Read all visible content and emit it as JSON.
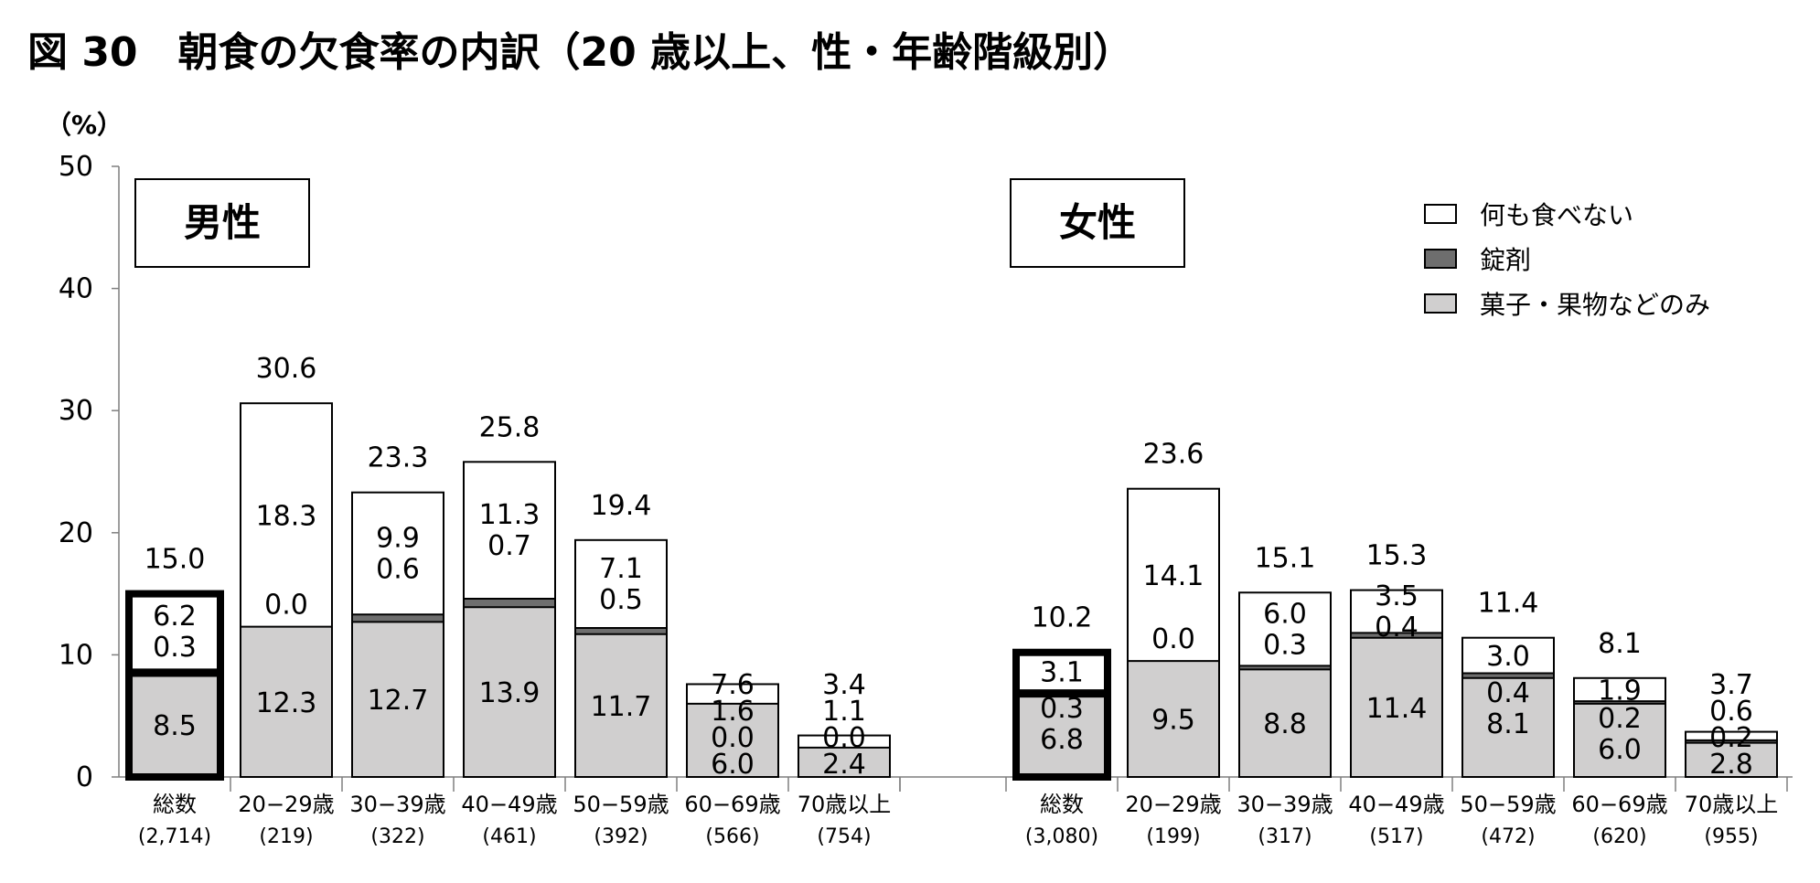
{
  "chart_data": {
    "type": "bar",
    "stacked": true,
    "title": "図 30　朝食の欠食率の内訳（20 歳以上、性・年齢階級別）",
    "unit_label": "（%）",
    "ylim": [
      0,
      50
    ],
    "yticks": [
      "0",
      "10",
      "20",
      "30",
      "40",
      "50"
    ],
    "grid": false,
    "legend_position": "top-right",
    "series": [
      {
        "key": "nothing",
        "name": "何も食べない",
        "color": "#ffffff"
      },
      {
        "key": "supplement",
        "name": "錠剤",
        "color": "#6e6e6e"
      },
      {
        "key": "snack",
        "name": "菓子・果物などのみ",
        "color": "#d0cfcf"
      }
    ],
    "panels": [
      {
        "label": "男性",
        "groups": [
          {
            "category": "総数",
            "n": "(2,714)",
            "total": 15.0,
            "total_label": "15.0",
            "snack": 8.5,
            "snack_label": "8.5",
            "supplement": 0.3,
            "supplement_label": "0.3",
            "nothing": 6.2,
            "nothing_label": "6.2",
            "highlight": true
          },
          {
            "category": "20−29歳",
            "n": "(219)",
            "total": 30.6,
            "total_label": "30.6",
            "snack": 12.3,
            "snack_label": "12.3",
            "supplement": 0.0,
            "supplement_label": "0.0",
            "nothing": 18.3,
            "nothing_label": "18.3",
            "highlight": false
          },
          {
            "category": "30−39歳",
            "n": "(322)",
            "total": 23.3,
            "total_label": "23.3",
            "snack": 12.7,
            "snack_label": "12.7",
            "supplement": 0.6,
            "supplement_label": "0.6",
            "nothing": 9.9,
            "nothing_label": "9.9",
            "highlight": false
          },
          {
            "category": "40−49歳",
            "n": "(461)",
            "total": 25.8,
            "total_label": "25.8",
            "snack": 13.9,
            "snack_label": "13.9",
            "supplement": 0.7,
            "supplement_label": "0.7",
            "nothing": 11.3,
            "nothing_label": "11.3",
            "highlight": false
          },
          {
            "category": "50−59歳",
            "n": "(392)",
            "total": 19.4,
            "total_label": "19.4",
            "snack": 11.7,
            "snack_label": "11.7",
            "supplement": 0.5,
            "supplement_label": "0.5",
            "nothing": 7.1,
            "nothing_label": "7.1",
            "highlight": false
          },
          {
            "category": "60−69歳",
            "n": "(566)",
            "total": 7.6,
            "total_label": "7.6",
            "snack": 6.0,
            "snack_label": "6.0",
            "supplement": 0.0,
            "supplement_label": "0.0",
            "nothing": 1.6,
            "nothing_label": "1.6",
            "highlight": false
          },
          {
            "category": "70歳以上",
            "n": "(754)",
            "total": 3.4,
            "total_label": "3.4",
            "snack": 2.4,
            "snack_label": "2.4",
            "supplement": 0.0,
            "supplement_label": "0.0",
            "nothing": 1.1,
            "nothing_label": "1.1",
            "highlight": false
          }
        ]
      },
      {
        "label": "女性",
        "groups": [
          {
            "category": "総数",
            "n": "(3,080)",
            "total": 10.2,
            "total_label": "10.2",
            "snack": 6.8,
            "snack_label": "6.8",
            "supplement": 0.3,
            "supplement_label": "0.3",
            "nothing": 3.1,
            "nothing_label": "3.1",
            "highlight": true
          },
          {
            "category": "20−29歳",
            "n": "(199)",
            "total": 23.6,
            "total_label": "23.6",
            "snack": 9.5,
            "snack_label": "9.5",
            "supplement": 0.0,
            "supplement_label": "0.0",
            "nothing": 14.1,
            "nothing_label": "14.1",
            "highlight": false
          },
          {
            "category": "30−39歳",
            "n": "(317)",
            "total": 15.1,
            "total_label": "15.1",
            "snack": 8.8,
            "snack_label": "8.8",
            "supplement": 0.3,
            "supplement_label": "0.3",
            "nothing": 6.0,
            "nothing_label": "6.0",
            "highlight": false
          },
          {
            "category": "40−49歳",
            "n": "(517)",
            "total": 15.3,
            "total_label": "15.3",
            "snack": 11.4,
            "snack_label": "11.4",
            "supplement": 0.4,
            "supplement_label": "0.4",
            "nothing": 3.5,
            "nothing_label": "3.5",
            "highlight": false
          },
          {
            "category": "50−59歳",
            "n": "(472)",
            "total": 11.4,
            "total_label": "11.4",
            "snack": 8.1,
            "snack_label": "8.1",
            "supplement": 0.4,
            "supplement_label": "0.4",
            "nothing": 3.0,
            "nothing_label": "3.0",
            "highlight": false
          },
          {
            "category": "60−69歳",
            "n": "(620)",
            "total": 8.1,
            "total_label": "8.1",
            "snack": 6.0,
            "snack_label": "6.0",
            "supplement": 0.2,
            "supplement_label": "0.2",
            "nothing": 1.9,
            "nothing_label": "1.9",
            "highlight": false
          },
          {
            "category": "70歳以上",
            "n": "(955)",
            "total": 3.7,
            "total_label": "3.7",
            "snack": 2.8,
            "snack_label": "2.8",
            "supplement": 0.2,
            "supplement_label": "0.2",
            "nothing": 0.6,
            "nothing_label": "0.6",
            "highlight": false
          }
        ]
      }
    ]
  }
}
